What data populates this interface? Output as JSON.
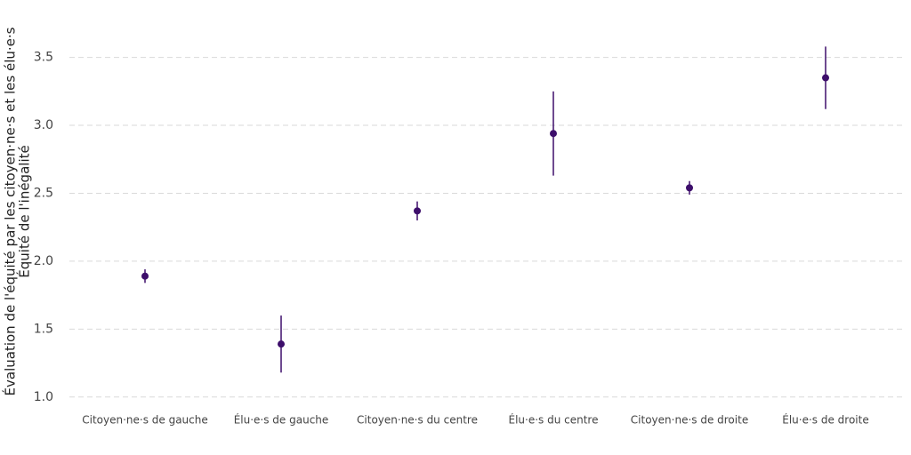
{
  "chart_data": {
    "type": "errorpoint",
    "y_label": [
      "Évaluation de l'équité par les citoyen·ne·s et les élu·e·s",
      "Équité de l'inégalité"
    ],
    "categories": [
      "Citoyen·ne·s de gauche",
      "Élu·e·s de gauche",
      "Citoyen·ne·s du centre",
      "Élu·e·s du centre",
      "Citoyen·ne·s de droite",
      "Élu·e·s de droite"
    ],
    "values": [
      1.89,
      1.39,
      2.37,
      2.94,
      2.54,
      3.35
    ],
    "errors": [
      0.05,
      0.21,
      0.07,
      0.31,
      0.05,
      0.23
    ],
    "color": "#3d0e6b",
    "ylim": [
      0.92,
      3.72
    ],
    "yticks": [
      {
        "value": 1,
        "label": "1.0"
      },
      1.5,
      {
        "value": 2,
        "label": "2.0"
      },
      2.5,
      {
        "value": 3,
        "label": "3.0"
      },
      3.5
    ],
    "grid": true
  }
}
